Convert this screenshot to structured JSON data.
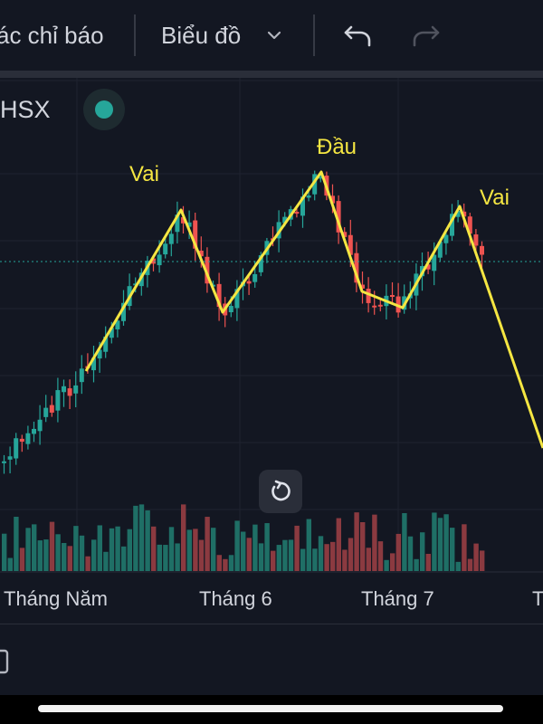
{
  "toolbar": {
    "indicators_label": "ác chỉ báo",
    "chart_type_label": "Biểu đồ"
  },
  "symbol": {
    "exchange_label": "HSX"
  },
  "colors": {
    "up": "#26a69a",
    "down": "#ef5350",
    "annotation": "#f5e642",
    "background": "#131722"
  },
  "chart_data": {
    "type": "candlestick",
    "x_axis_labels": [
      "Tháng Năm",
      "Tháng 6",
      "Tháng 7",
      "T"
    ],
    "annotations": [
      "Vai",
      "Đầu",
      "Vai"
    ],
    "pattern": "head-and-shoulders"
  }
}
